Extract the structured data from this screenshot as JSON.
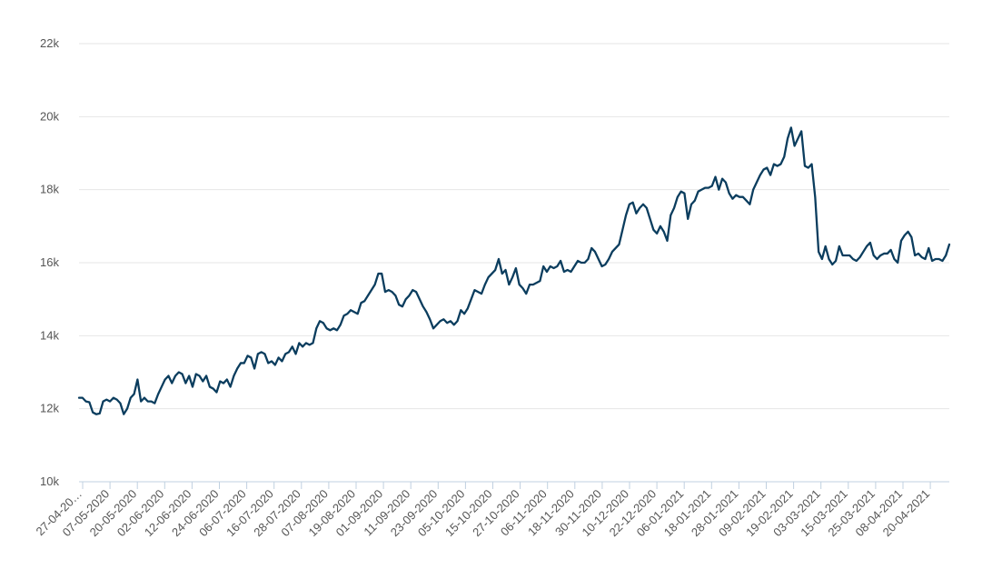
{
  "chart_data": {
    "type": "line",
    "title": "",
    "xlabel": "",
    "ylabel": "",
    "ylim": [
      10000,
      22000
    ],
    "y_ticks": [
      10000,
      12000,
      14000,
      16000,
      18000,
      20000,
      22000
    ],
    "y_tick_labels": [
      "10k",
      "12k",
      "14k",
      "16k",
      "18k",
      "20k",
      "22k"
    ],
    "grid": true,
    "legend": "none",
    "x_tick_labels": [
      "27-04-20…",
      "07-05-2020",
      "20-05-2020",
      "02-06-2020",
      "12-06-2020",
      "24-06-2020",
      "06-07-2020",
      "16-07-2020",
      "28-07-2020",
      "07-08-2020",
      "19-08-2020",
      "01-09-2020",
      "11-09-2020",
      "23-09-2020",
      "05-10-2020",
      "15-10-2020",
      "27-10-2020",
      "06-11-2020",
      "18-11-2020",
      "30-11-2020",
      "10-12-2020",
      "22-12-2020",
      "06-01-2021",
      "18-01-2021",
      "28-01-2021",
      "09-02-2021",
      "19-02-2021",
      "03-03-2021",
      "15-03-2021",
      "25-03-2021",
      "08-04-2021",
      "20-04-2021"
    ],
    "series": [
      {
        "color": "#0b3d5e",
        "values": [
          12300,
          12300,
          12200,
          12180,
          11900,
          11850,
          11870,
          12200,
          12250,
          12200,
          12300,
          12250,
          12150,
          11850,
          12000,
          12300,
          12400,
          12800,
          12200,
          12300,
          12200,
          12200,
          12150,
          12400,
          12600,
          12800,
          12900,
          12700,
          12900,
          13000,
          12950,
          12700,
          12900,
          12600,
          12950,
          12900,
          12750,
          12900,
          12600,
          12550,
          12450,
          12750,
          12700,
          12800,
          12600,
          12900,
          13100,
          13250,
          13250,
          13450,
          13400,
          13100,
          13500,
          13550,
          13500,
          13250,
          13300,
          13200,
          13400,
          13300,
          13500,
          13550,
          13700,
          13500,
          13800,
          13700,
          13800,
          13750,
          13800,
          14200,
          14400,
          14350,
          14200,
          14150,
          14200,
          14150,
          14300,
          14550,
          14600,
          14700,
          14650,
          14600,
          14900,
          14950,
          15100,
          15250,
          15400,
          15700,
          15700,
          15200,
          15250,
          15200,
          15100,
          14850,
          14800,
          15000,
          15100,
          15250,
          15200,
          15000,
          14800,
          14650,
          14450,
          14200,
          14300,
          14400,
          14450,
          14350,
          14400,
          14300,
          14400,
          14700,
          14600,
          14750,
          15000,
          15250,
          15200,
          15150,
          15400,
          15600,
          15700,
          15800,
          16100,
          15700,
          15800,
          15400,
          15600,
          15850,
          15400,
          15300,
          15150,
          15400,
          15400,
          15450,
          15500,
          15900,
          15750,
          15900,
          15850,
          15900,
          16050,
          15750,
          15800,
          15750,
          15900,
          16050,
          16000,
          16000,
          16100,
          16400,
          16300,
          16100,
          15900,
          15950,
          16100,
          16300,
          16400,
          16500,
          16900,
          17300,
          17600,
          17650,
          17350,
          17500,
          17600,
          17500,
          17200,
          16900,
          16800,
          17000,
          16850,
          16600,
          17300,
          17500,
          17800,
          17950,
          17900,
          17200,
          17600,
          17700,
          17950,
          18000,
          18050,
          18050,
          18100,
          18350,
          18000,
          18300,
          18200,
          17900,
          17750,
          17850,
          17800,
          17800,
          17700,
          17600,
          18000,
          18200,
          18400,
          18550,
          18600,
          18400,
          18700,
          18650,
          18700,
          18900,
          19400,
          19700,
          19200,
          19400,
          19600,
          18650,
          18600,
          18700,
          17800,
          16300,
          16100,
          16450,
          16100,
          15950,
          16050,
          16450,
          16200,
          16200,
          16200,
          16100,
          16050,
          16150,
          16300,
          16450,
          16550,
          16200,
          16100,
          16200,
          16250,
          16250,
          16350,
          16100,
          16000,
          16600,
          16750,
          16850,
          16700,
          16200,
          16250,
          16150,
          16100,
          16400,
          16050,
          16100,
          16100,
          16050,
          16200,
          16500
        ]
      }
    ]
  }
}
